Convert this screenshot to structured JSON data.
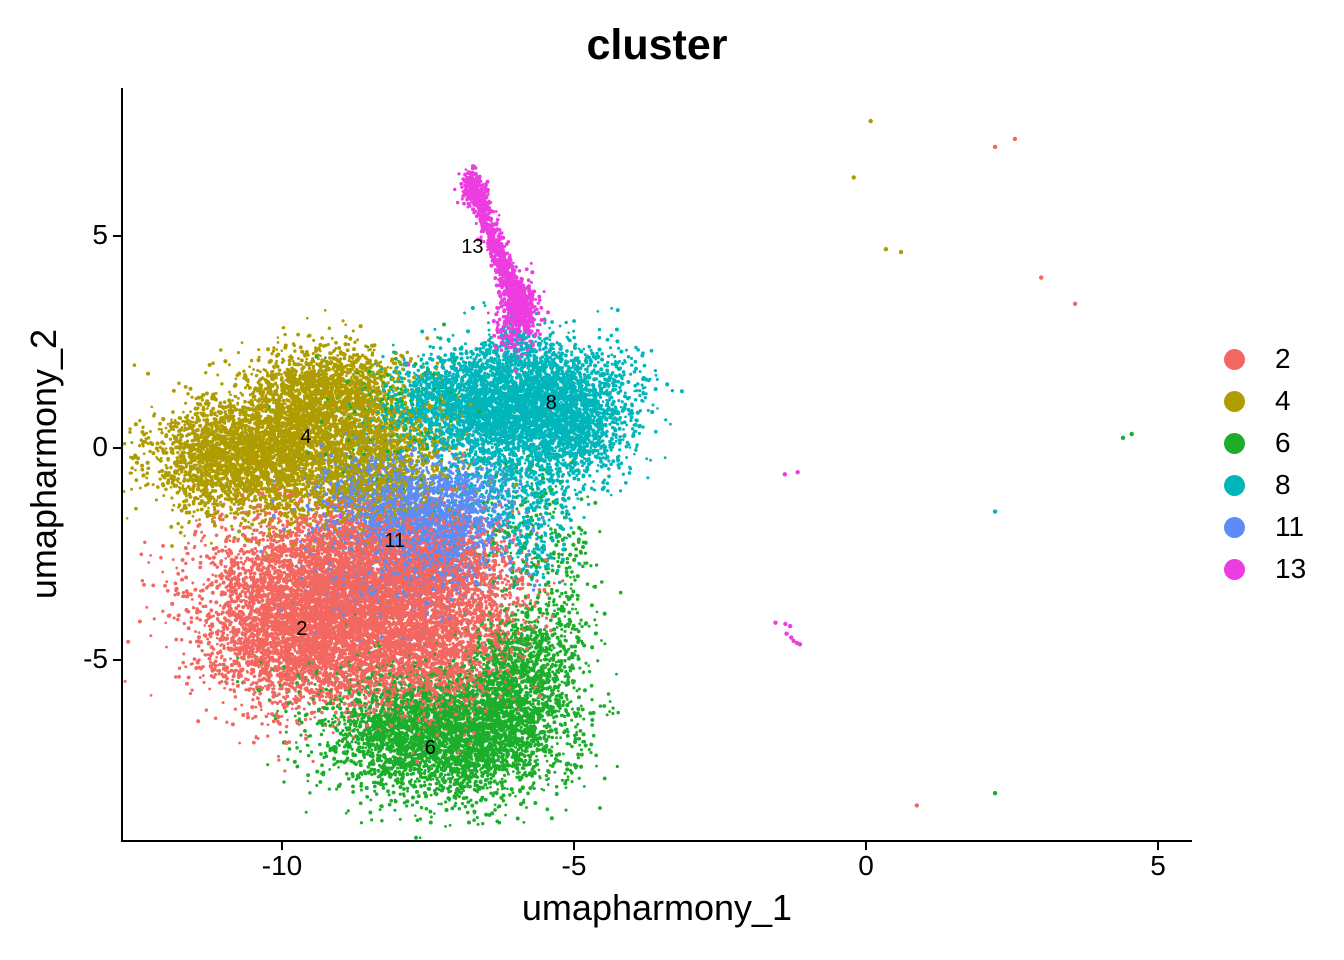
{
  "title": "cluster",
  "axes": {
    "x": {
      "label": "umapharmony_1",
      "ticks": [
        {
          "value": -10,
          "label": "-10"
        },
        {
          "value": -5,
          "label": "-5"
        },
        {
          "value": 0,
          "label": "0"
        },
        {
          "value": 5,
          "label": "5"
        }
      ]
    },
    "y": {
      "label": "umapharmony_2",
      "ticks": [
        {
          "value": 5,
          "label": "5"
        },
        {
          "value": 0,
          "label": "0"
        },
        {
          "value": -5,
          "label": "-5"
        }
      ]
    }
  },
  "legend": {
    "entries": [
      {
        "label": "2",
        "color": "#F26860"
      },
      {
        "label": "4",
        "color": "#AF9C00"
      },
      {
        "label": "6",
        "color": "#1CAE2B"
      },
      {
        "label": "8",
        "color": "#00B6BA"
      },
      {
        "label": "11",
        "color": "#5C8DF6"
      },
      {
        "label": "13",
        "color": "#ED3CDF"
      }
    ]
  },
  "chart_data": {
    "type": "scatter",
    "title": "cluster",
    "xlabel": "umapharmony_1",
    "ylabel": "umapharmony_2",
    "xlim": [
      -12.7,
      5.6
    ],
    "ylim": [
      -9.3,
      8.5
    ],
    "grid": false,
    "legend_position": "right",
    "blob_format": "cx,cy,sx,sy,n (gaussian blob in data units)",
    "streak_format": "x1,y1,x2,y2,sx,sy,n (elongated segment of points)",
    "clusters": [
      {
        "name": "2",
        "color": "#F26860",
        "label_pos": {
          "x": -9.66,
          "y": -4.26
        },
        "blobs": [
          [
            -9.5,
            -3.3,
            1.0,
            0.85,
            2400
          ],
          [
            -9.9,
            -4.6,
            0.75,
            0.8,
            1600
          ],
          [
            -8.6,
            -4.4,
            0.95,
            0.95,
            2400
          ],
          [
            -7.9,
            -3.2,
            0.8,
            0.75,
            1500
          ],
          [
            -8.6,
            -2.2,
            0.85,
            0.5,
            800
          ],
          [
            -7.2,
            -4.6,
            0.55,
            0.65,
            700
          ],
          [
            -7.5,
            -5.6,
            0.7,
            0.5,
            450
          ],
          [
            -7.0,
            -2.6,
            0.55,
            0.6,
            350
          ],
          [
            -6.35,
            -3.6,
            0.4,
            0.75,
            250
          ]
        ],
        "outliers": [
          [
            2.55,
            7.29
          ],
          [
            2.21,
            7.1
          ],
          [
            3.0,
            4.02
          ],
          [
            3.58,
            3.4
          ],
          [
            0.87,
            -8.43
          ]
        ]
      },
      {
        "name": "4",
        "color": "#AF9C00",
        "label_pos": {
          "x": -9.59,
          "y": 0.26
        },
        "blobs": [
          [
            -10.4,
            -0.4,
            0.9,
            0.7,
            2100
          ],
          [
            -9.4,
            0.6,
            0.85,
            0.7,
            1700
          ],
          [
            -9.25,
            1.5,
            0.62,
            0.48,
            900
          ],
          [
            -11.0,
            0.0,
            0.55,
            0.5,
            700
          ],
          [
            -8.5,
            -0.8,
            0.7,
            0.55,
            700
          ],
          [
            -8.2,
            0.3,
            0.6,
            0.6,
            400
          ]
        ],
        "outliers": [
          [
            0.08,
            7.71
          ],
          [
            -0.21,
            6.38
          ],
          [
            0.34,
            4.69
          ],
          [
            0.6,
            4.62
          ]
        ]
      },
      {
        "name": "6",
        "color": "#1CAE2B",
        "label_pos": {
          "x": -7.46,
          "y": -7.07
        },
        "blobs": [
          [
            -7.2,
            -7.0,
            0.95,
            0.7,
            2500
          ],
          [
            -6.3,
            -6.2,
            0.65,
            0.6,
            950
          ],
          [
            -8.1,
            -6.5,
            0.6,
            0.5,
            550
          ],
          [
            -5.9,
            -5.3,
            0.45,
            0.5,
            420
          ],
          [
            -6.0,
            -4.7,
            0.4,
            0.45,
            280
          ],
          [
            -5.15,
            -3.8,
            0.3,
            1.1,
            240
          ],
          [
            -5.9,
            -1.9,
            0.5,
            0.9,
            150
          ],
          [
            -8.15,
            0.5,
            0.6,
            0.8,
            180
          ],
          [
            -8.5,
            -5.4,
            1.0,
            0.6,
            150
          ]
        ],
        "outliers": [
          [
            4.4,
            0.24
          ],
          [
            4.55,
            0.33
          ],
          [
            2.21,
            -8.14
          ]
        ]
      },
      {
        "name": "8",
        "color": "#00B6BA",
        "label_pos": {
          "x": -5.39,
          "y": 1.05
        },
        "blobs": [
          [
            -5.6,
            1.1,
            0.8,
            0.75,
            2500
          ],
          [
            -6.5,
            0.8,
            0.7,
            0.6,
            1150
          ],
          [
            -5.0,
            0.4,
            0.5,
            0.7,
            700
          ],
          [
            -7.0,
            1.4,
            0.6,
            0.45,
            450
          ],
          [
            -7.65,
            0.9,
            0.45,
            0.4,
            200
          ],
          [
            -5.9,
            -0.9,
            0.5,
            0.7,
            380
          ],
          [
            -5.7,
            -2.1,
            0.35,
            0.55,
            140
          ],
          [
            -6.1,
            2.2,
            0.35,
            0.35,
            130
          ]
        ],
        "outliers": [
          [
            2.21,
            -1.5
          ]
        ]
      },
      {
        "name": "11",
        "color": "#5C8DF6",
        "label_pos": {
          "x": -8.07,
          "y": -2.2
        },
        "blobs": [
          [
            -7.7,
            -1.5,
            0.7,
            0.6,
            1600
          ],
          [
            -7.25,
            -2.3,
            0.5,
            0.5,
            600
          ],
          [
            -8.1,
            -3.1,
            0.8,
            0.6,
            300
          ],
          [
            -8.5,
            -0.9,
            0.55,
            0.4,
            280
          ],
          [
            -6.9,
            -1.1,
            0.4,
            0.4,
            200
          ]
        ],
        "outliers": []
      },
      {
        "name": "13",
        "color": "#ED3CDF",
        "label_pos": {
          "x": -6.74,
          "y": 4.75
        },
        "streaks": [
          [
            -6.78,
            6.35,
            -5.85,
            3.05,
            0.085,
            0.14,
            850
          ]
        ],
        "blobs": [
          [
            -6.72,
            6.15,
            0.1,
            0.2,
            150
          ],
          [
            -5.95,
            3.35,
            0.17,
            0.33,
            380
          ],
          [
            -6.05,
            2.6,
            0.18,
            0.28,
            130
          ]
        ],
        "outliers": [
          [
            -1.39,
            -0.62
          ],
          [
            -1.17,
            -0.57
          ],
          [
            -7.84,
            1.97
          ],
          [
            -9.0,
            -1.6
          ],
          [
            -1.55,
            -4.12
          ],
          [
            -1.38,
            -4.15
          ],
          [
            -1.3,
            -4.2
          ],
          [
            -1.36,
            -4.38
          ],
          [
            -1.28,
            -4.47
          ],
          [
            -1.24,
            -4.55
          ],
          [
            -1.18,
            -4.6
          ],
          [
            -1.13,
            -4.63
          ]
        ]
      }
    ]
  }
}
